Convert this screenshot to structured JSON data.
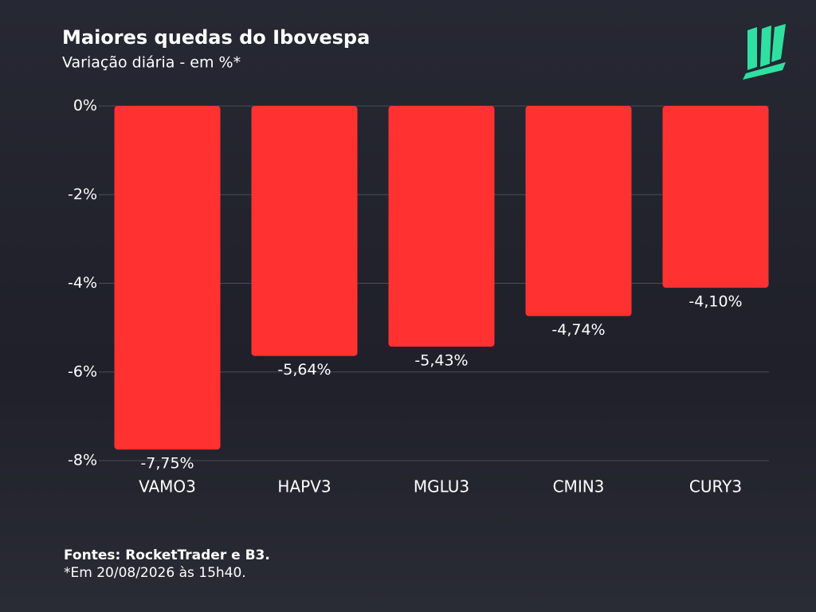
{
  "chart_data": {
    "type": "bar",
    "title": "Maiores quedas do Ibovespa",
    "subtitle": "Variação diária - em %*",
    "categories": [
      "VAMO3",
      "HAPV3",
      "MGLU3",
      "CMIN3",
      "CURY3"
    ],
    "values": [
      -7.75,
      -5.64,
      -5.43,
      -4.74,
      -4.1
    ],
    "value_labels": [
      "-7,75%",
      "-5,64%",
      "-5,43%",
      "-4,74%",
      "-4,10%"
    ],
    "color": "#ff3131",
    "ylim": [
      -8,
      0
    ],
    "yticks": [
      {
        "value": 0,
        "label": "0%"
      },
      {
        "value": -2,
        "label": "-2%"
      },
      {
        "value": -4,
        "label": "-4%"
      },
      {
        "value": -6,
        "label": "-6%"
      },
      {
        "value": -8,
        "label": "-8%"
      }
    ],
    "grid": true,
    "source": "Fontes: RocketTrader e B3.",
    "note": "*Em 20/08/2026 às 15h40."
  }
}
